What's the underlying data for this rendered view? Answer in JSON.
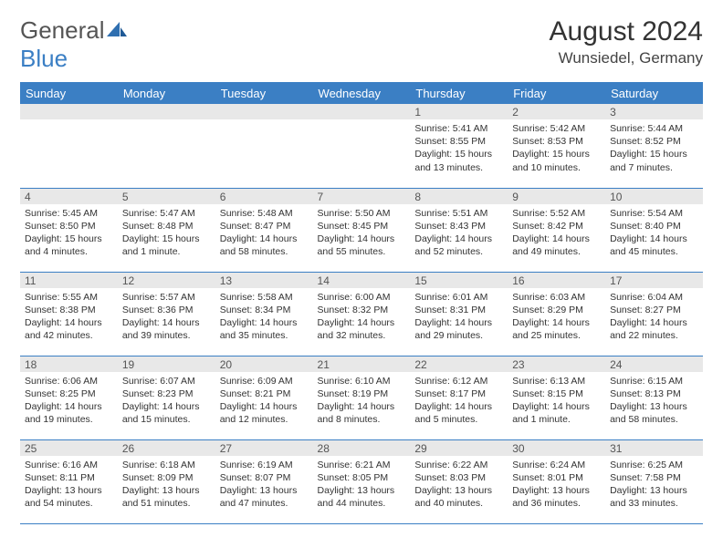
{
  "logo": {
    "text1": "General",
    "text2": "Blue"
  },
  "title": "August 2024",
  "location": "Wunsiedel, Germany",
  "headers": [
    "Sunday",
    "Monday",
    "Tuesday",
    "Wednesday",
    "Thursday",
    "Friday",
    "Saturday"
  ],
  "colors": {
    "accent": "#3b7fc4",
    "dayband": "#e8e8e8",
    "text": "#333333"
  },
  "weeks": [
    [
      {
        "n": "",
        "sr": "",
        "ss": "",
        "dl": ""
      },
      {
        "n": "",
        "sr": "",
        "ss": "",
        "dl": ""
      },
      {
        "n": "",
        "sr": "",
        "ss": "",
        "dl": ""
      },
      {
        "n": "",
        "sr": "",
        "ss": "",
        "dl": ""
      },
      {
        "n": "1",
        "sr": "Sunrise: 5:41 AM",
        "ss": "Sunset: 8:55 PM",
        "dl": "Daylight: 15 hours and 13 minutes."
      },
      {
        "n": "2",
        "sr": "Sunrise: 5:42 AM",
        "ss": "Sunset: 8:53 PM",
        "dl": "Daylight: 15 hours and 10 minutes."
      },
      {
        "n": "3",
        "sr": "Sunrise: 5:44 AM",
        "ss": "Sunset: 8:52 PM",
        "dl": "Daylight: 15 hours and 7 minutes."
      }
    ],
    [
      {
        "n": "4",
        "sr": "Sunrise: 5:45 AM",
        "ss": "Sunset: 8:50 PM",
        "dl": "Daylight: 15 hours and 4 minutes."
      },
      {
        "n": "5",
        "sr": "Sunrise: 5:47 AM",
        "ss": "Sunset: 8:48 PM",
        "dl": "Daylight: 15 hours and 1 minute."
      },
      {
        "n": "6",
        "sr": "Sunrise: 5:48 AM",
        "ss": "Sunset: 8:47 PM",
        "dl": "Daylight: 14 hours and 58 minutes."
      },
      {
        "n": "7",
        "sr": "Sunrise: 5:50 AM",
        "ss": "Sunset: 8:45 PM",
        "dl": "Daylight: 14 hours and 55 minutes."
      },
      {
        "n": "8",
        "sr": "Sunrise: 5:51 AM",
        "ss": "Sunset: 8:43 PM",
        "dl": "Daylight: 14 hours and 52 minutes."
      },
      {
        "n": "9",
        "sr": "Sunrise: 5:52 AM",
        "ss": "Sunset: 8:42 PM",
        "dl": "Daylight: 14 hours and 49 minutes."
      },
      {
        "n": "10",
        "sr": "Sunrise: 5:54 AM",
        "ss": "Sunset: 8:40 PM",
        "dl": "Daylight: 14 hours and 45 minutes."
      }
    ],
    [
      {
        "n": "11",
        "sr": "Sunrise: 5:55 AM",
        "ss": "Sunset: 8:38 PM",
        "dl": "Daylight: 14 hours and 42 minutes."
      },
      {
        "n": "12",
        "sr": "Sunrise: 5:57 AM",
        "ss": "Sunset: 8:36 PM",
        "dl": "Daylight: 14 hours and 39 minutes."
      },
      {
        "n": "13",
        "sr": "Sunrise: 5:58 AM",
        "ss": "Sunset: 8:34 PM",
        "dl": "Daylight: 14 hours and 35 minutes."
      },
      {
        "n": "14",
        "sr": "Sunrise: 6:00 AM",
        "ss": "Sunset: 8:32 PM",
        "dl": "Daylight: 14 hours and 32 minutes."
      },
      {
        "n": "15",
        "sr": "Sunrise: 6:01 AM",
        "ss": "Sunset: 8:31 PM",
        "dl": "Daylight: 14 hours and 29 minutes."
      },
      {
        "n": "16",
        "sr": "Sunrise: 6:03 AM",
        "ss": "Sunset: 8:29 PM",
        "dl": "Daylight: 14 hours and 25 minutes."
      },
      {
        "n": "17",
        "sr": "Sunrise: 6:04 AM",
        "ss": "Sunset: 8:27 PM",
        "dl": "Daylight: 14 hours and 22 minutes."
      }
    ],
    [
      {
        "n": "18",
        "sr": "Sunrise: 6:06 AM",
        "ss": "Sunset: 8:25 PM",
        "dl": "Daylight: 14 hours and 19 minutes."
      },
      {
        "n": "19",
        "sr": "Sunrise: 6:07 AM",
        "ss": "Sunset: 8:23 PM",
        "dl": "Daylight: 14 hours and 15 minutes."
      },
      {
        "n": "20",
        "sr": "Sunrise: 6:09 AM",
        "ss": "Sunset: 8:21 PM",
        "dl": "Daylight: 14 hours and 12 minutes."
      },
      {
        "n": "21",
        "sr": "Sunrise: 6:10 AM",
        "ss": "Sunset: 8:19 PM",
        "dl": "Daylight: 14 hours and 8 minutes."
      },
      {
        "n": "22",
        "sr": "Sunrise: 6:12 AM",
        "ss": "Sunset: 8:17 PM",
        "dl": "Daylight: 14 hours and 5 minutes."
      },
      {
        "n": "23",
        "sr": "Sunrise: 6:13 AM",
        "ss": "Sunset: 8:15 PM",
        "dl": "Daylight: 14 hours and 1 minute."
      },
      {
        "n": "24",
        "sr": "Sunrise: 6:15 AM",
        "ss": "Sunset: 8:13 PM",
        "dl": "Daylight: 13 hours and 58 minutes."
      }
    ],
    [
      {
        "n": "25",
        "sr": "Sunrise: 6:16 AM",
        "ss": "Sunset: 8:11 PM",
        "dl": "Daylight: 13 hours and 54 minutes."
      },
      {
        "n": "26",
        "sr": "Sunrise: 6:18 AM",
        "ss": "Sunset: 8:09 PM",
        "dl": "Daylight: 13 hours and 51 minutes."
      },
      {
        "n": "27",
        "sr": "Sunrise: 6:19 AM",
        "ss": "Sunset: 8:07 PM",
        "dl": "Daylight: 13 hours and 47 minutes."
      },
      {
        "n": "28",
        "sr": "Sunrise: 6:21 AM",
        "ss": "Sunset: 8:05 PM",
        "dl": "Daylight: 13 hours and 44 minutes."
      },
      {
        "n": "29",
        "sr": "Sunrise: 6:22 AM",
        "ss": "Sunset: 8:03 PM",
        "dl": "Daylight: 13 hours and 40 minutes."
      },
      {
        "n": "30",
        "sr": "Sunrise: 6:24 AM",
        "ss": "Sunset: 8:01 PM",
        "dl": "Daylight: 13 hours and 36 minutes."
      },
      {
        "n": "31",
        "sr": "Sunrise: 6:25 AM",
        "ss": "Sunset: 7:58 PM",
        "dl": "Daylight: 13 hours and 33 minutes."
      }
    ]
  ]
}
